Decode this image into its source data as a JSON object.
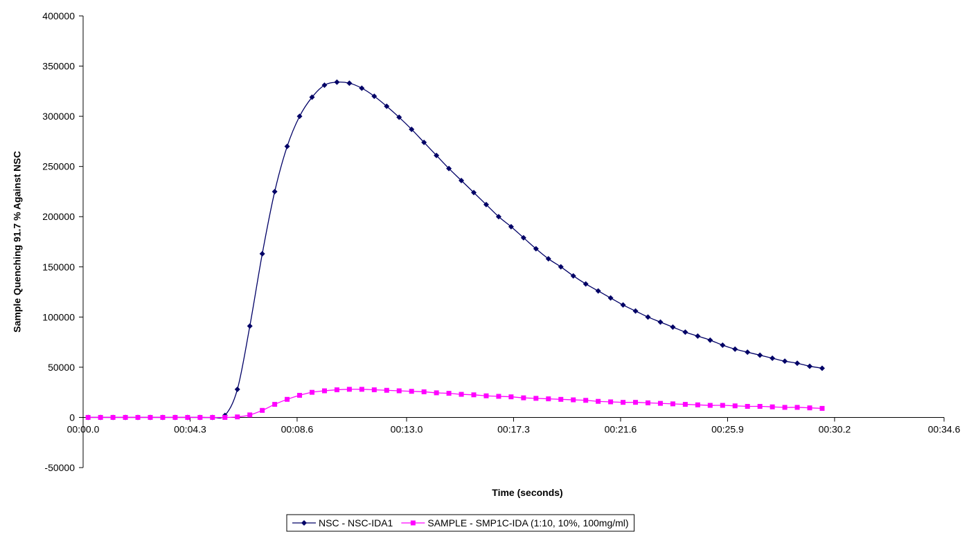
{
  "chart_data": {
    "type": "line",
    "title": "",
    "xlabel": "Time (seconds)",
    "ylabel": "Sample Quenching 91.7 %  Against NSC",
    "xlim": [
      0,
      34.6
    ],
    "ylim": [
      -50000,
      400000
    ],
    "x_ticks": [
      {
        "value": 0,
        "label": "00:00.0"
      },
      {
        "value": 4.3,
        "label": "00:04.3"
      },
      {
        "value": 8.6,
        "label": "00:08.6"
      },
      {
        "value": 13.0,
        "label": "00:13.0"
      },
      {
        "value": 17.3,
        "label": "00:17.3"
      },
      {
        "value": 21.6,
        "label": "00:21.6"
      },
      {
        "value": 25.9,
        "label": "00:25.9"
      },
      {
        "value": 30.2,
        "label": "00:30.2"
      },
      {
        "value": 34.6,
        "label": "00:34.6"
      }
    ],
    "y_ticks": [
      {
        "value": 400000,
        "label": "400000"
      },
      {
        "value": 350000,
        "label": "350000"
      },
      {
        "value": 300000,
        "label": "300000"
      },
      {
        "value": 250000,
        "label": "250000"
      },
      {
        "value": 200000,
        "label": "200000"
      },
      {
        "value": 150000,
        "label": "150000"
      },
      {
        "value": 100000,
        "label": "100000"
      },
      {
        "value": 50000,
        "label": "50000"
      },
      {
        "value": 0,
        "label": "0"
      },
      {
        "value": -50000,
        "label": "-50000"
      }
    ],
    "grid": false,
    "legend_position": "bottom",
    "x": [
      0.2,
      0.7,
      1.2,
      1.7,
      2.2,
      2.7,
      3.2,
      3.7,
      4.2,
      4.7,
      5.2,
      5.7,
      6.2,
      6.7,
      7.2,
      7.7,
      8.2,
      8.7,
      9.2,
      9.7,
      10.2,
      10.7,
      11.2,
      11.7,
      12.2,
      12.7,
      13.2,
      13.7,
      14.2,
      14.7,
      15.2,
      15.7,
      16.2,
      16.7,
      17.2,
      17.7,
      18.2,
      18.7,
      19.2,
      19.7,
      20.2,
      20.7,
      21.2,
      21.7,
      22.2,
      22.7,
      23.2,
      23.7,
      24.2,
      24.7,
      25.2,
      25.7,
      26.2,
      26.7,
      27.2,
      27.7,
      28.2,
      28.7,
      29.2,
      29.7
    ],
    "series": [
      {
        "name": "NSC - NSC-IDA1",
        "color": "#000066",
        "marker": "diamond",
        "values": [
          0,
          0,
          0,
          0,
          0,
          0,
          0,
          0,
          0,
          0,
          0,
          2000,
          28000,
          91000,
          163000,
          225000,
          270000,
          300000,
          319000,
          331000,
          334000,
          333000,
          328000,
          320000,
          310000,
          299000,
          287000,
          274000,
          261000,
          248000,
          236000,
          224000,
          212000,
          200000,
          190000,
          179000,
          168000,
          158000,
          150000,
          141000,
          133000,
          126000,
          119000,
          112000,
          106000,
          100000,
          95000,
          90000,
          85000,
          81000,
          77000,
          72000,
          68000,
          65000,
          62000,
          59000,
          56000,
          54000,
          51000,
          49000
        ]
      },
      {
        "name": "SAMPLE - SMP1C-IDA (1:10, 10%, 100mg/ml)",
        "color": "#ff00ff",
        "marker": "square",
        "values": [
          0,
          0,
          0,
          0,
          0,
          0,
          0,
          0,
          0,
          0,
          0,
          0,
          500,
          2500,
          7000,
          13000,
          18000,
          22000,
          25000,
          26500,
          27500,
          28000,
          28000,
          27500,
          27000,
          26500,
          26000,
          25500,
          24500,
          24000,
          23000,
          22500,
          21500,
          21000,
          20500,
          19500,
          19000,
          18500,
          18000,
          17500,
          17000,
          16000,
          15500,
          15000,
          15000,
          14500,
          14000,
          13500,
          13000,
          12500,
          12000,
          12000,
          11500,
          11000,
          11000,
          10500,
          10000,
          10000,
          9500,
          9000
        ]
      }
    ]
  }
}
